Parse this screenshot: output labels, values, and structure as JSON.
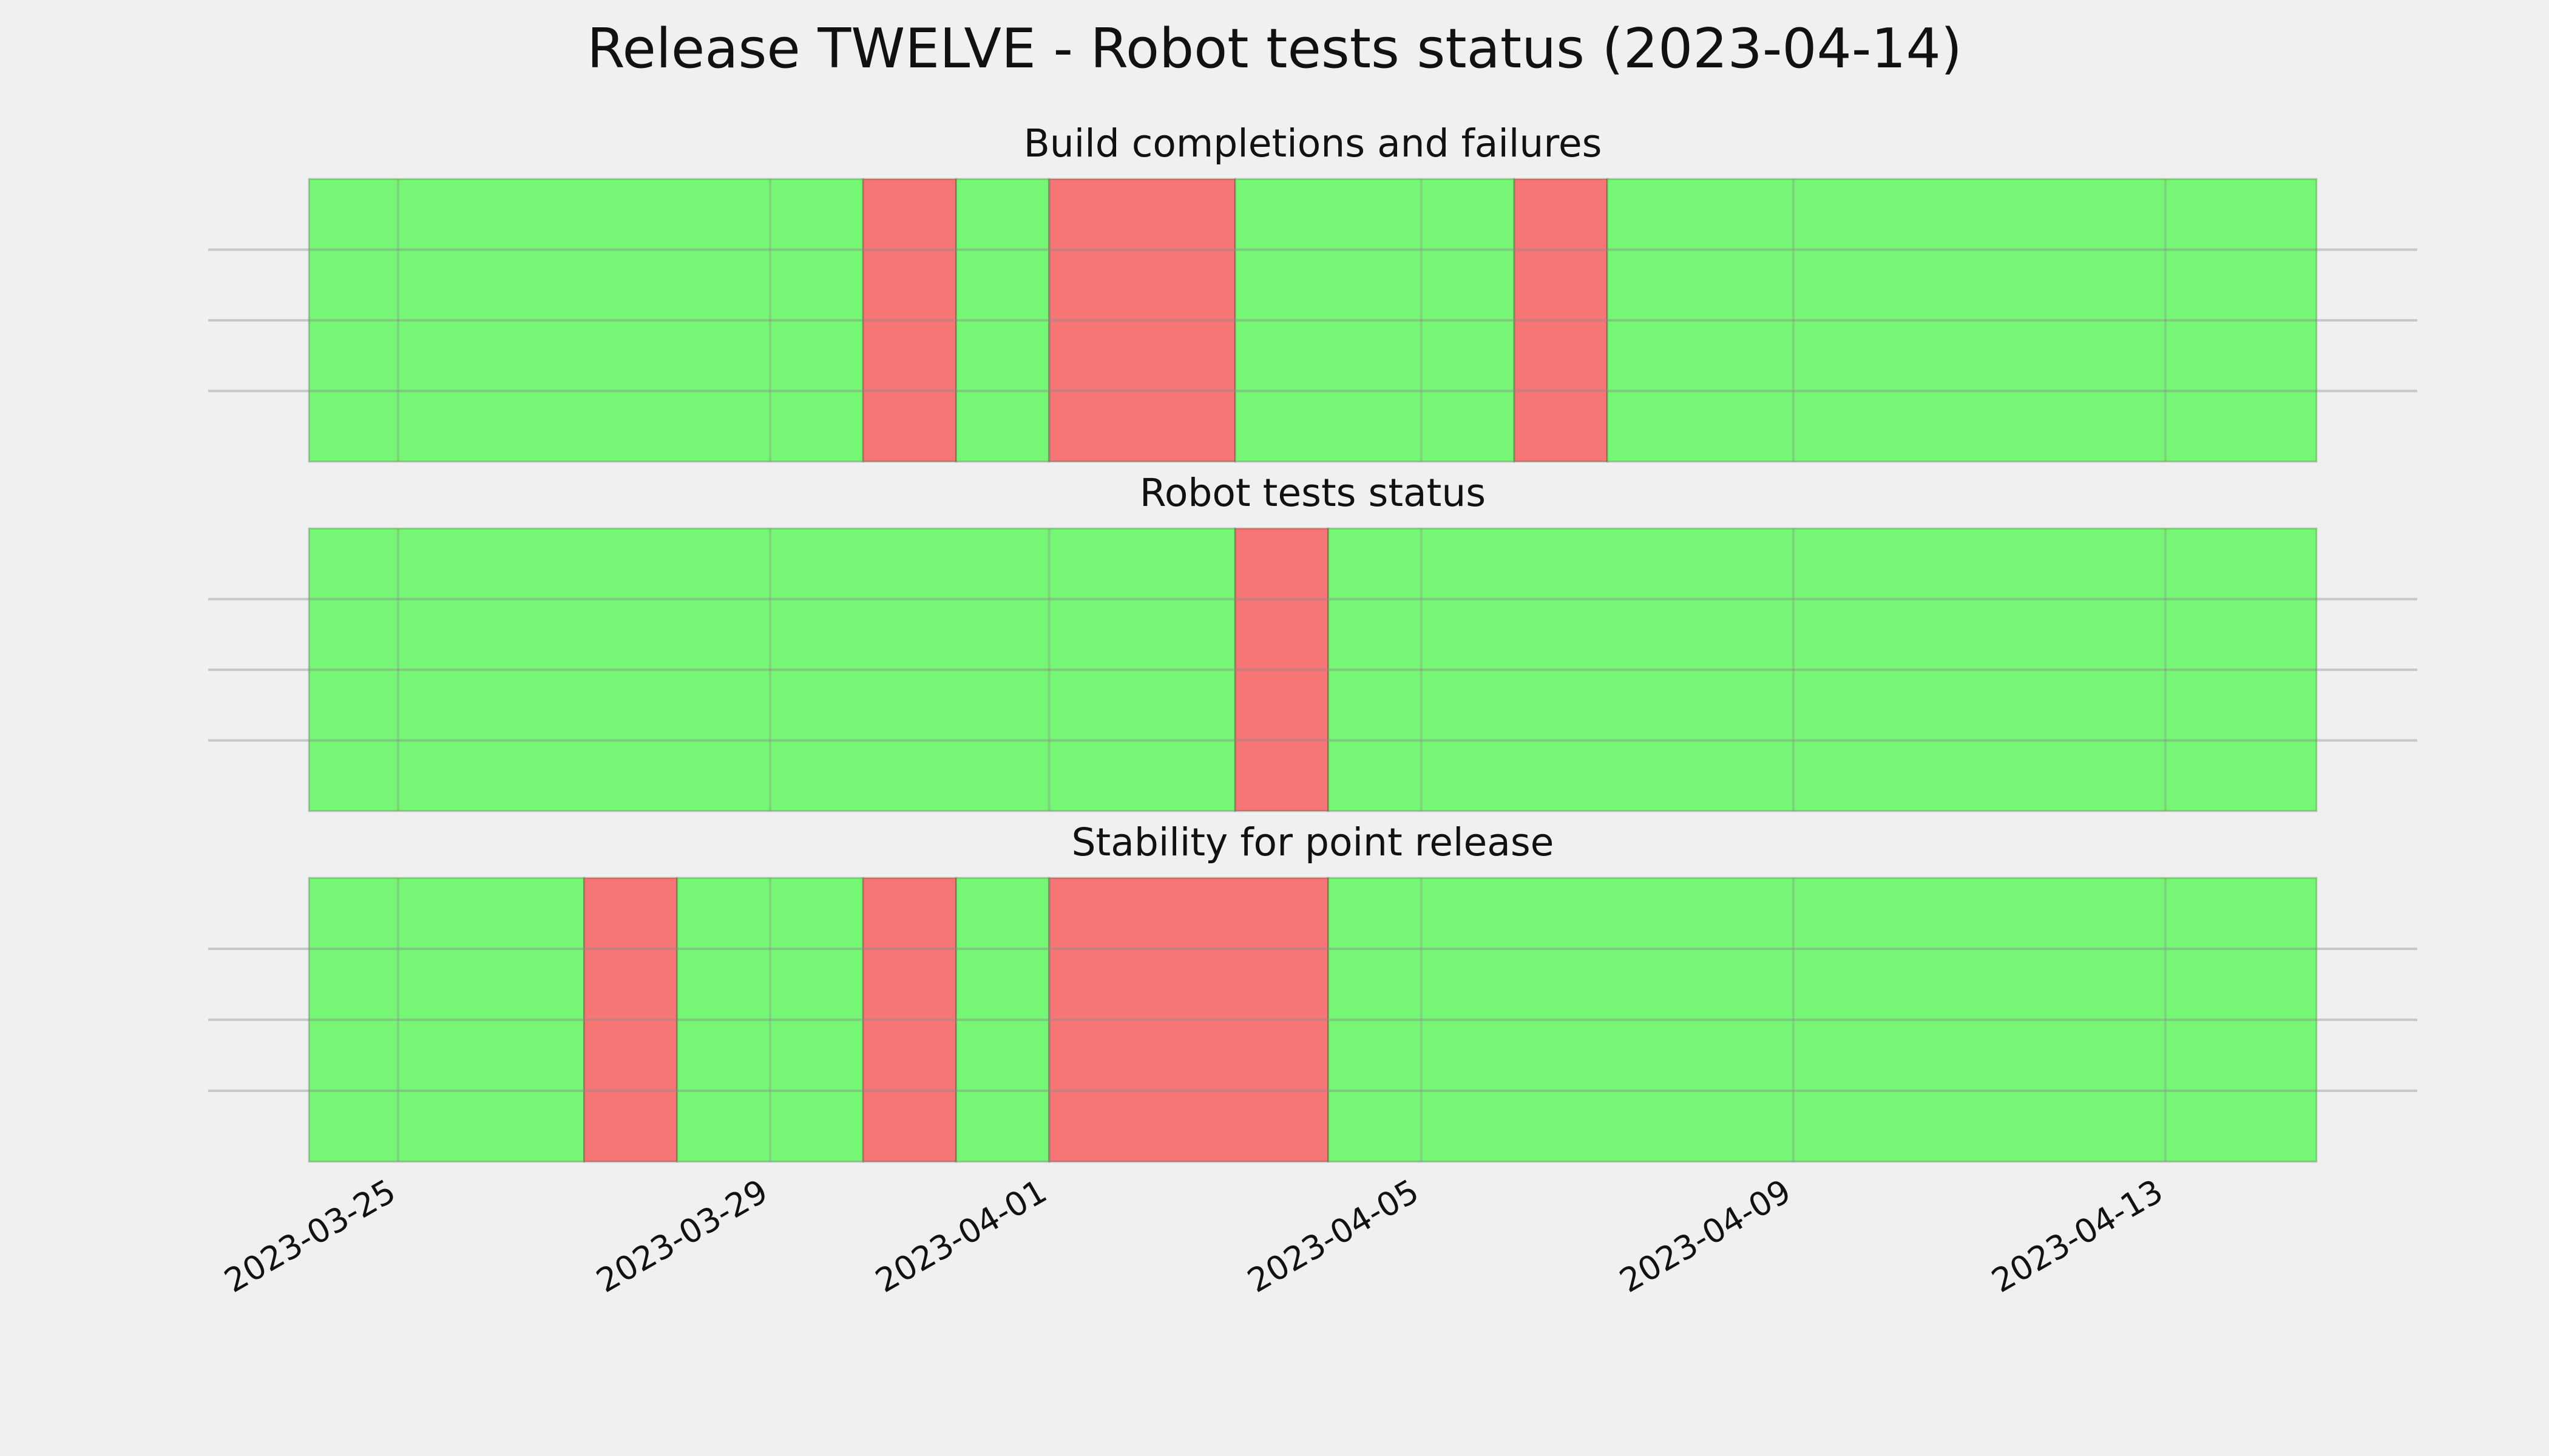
{
  "chart_data": [
    {
      "type": "timeline",
      "suptitle": "Release TWELVE - Robot tests status (2023-04-14)",
      "title": "Build completions and failures",
      "xlim": [
        "2023-03-22T23:00",
        "2023-04-15T17:00"
      ],
      "ylim": [
        0,
        1
      ],
      "yticks": [
        0.25,
        0.5,
        0.75
      ],
      "grid": true,
      "spans": [
        {
          "start": "2023-03-24T01:00",
          "end": "2023-03-30",
          "color": "#75f675"
        },
        {
          "start": "2023-03-30",
          "end": "2023-03-31",
          "color": "#f67676"
        },
        {
          "start": "2023-03-31",
          "end": "2023-04-01",
          "color": "#75f675"
        },
        {
          "start": "2023-04-01",
          "end": "2023-04-03",
          "color": "#f67676"
        },
        {
          "start": "2023-04-03",
          "end": "2023-04-06",
          "color": "#75f675"
        },
        {
          "start": "2023-04-06",
          "end": "2023-04-07",
          "color": "#f67676"
        },
        {
          "start": "2023-04-07",
          "end": "2023-04-14T15:00",
          "color": "#75f675"
        }
      ]
    },
    {
      "type": "timeline",
      "title": "Robot tests status",
      "xlim": [
        "2023-03-22T23:00",
        "2023-04-15T17:00"
      ],
      "ylim": [
        0,
        1
      ],
      "yticks": [
        0.25,
        0.5,
        0.75
      ],
      "grid": true,
      "spans": [
        {
          "start": "2023-03-24T01:00",
          "end": "2023-04-03",
          "color": "#75f675"
        },
        {
          "start": "2023-04-03",
          "end": "2023-04-04",
          "color": "#f67676"
        },
        {
          "start": "2023-04-04",
          "end": "2023-04-14T15:00",
          "color": "#75f675"
        }
      ]
    },
    {
      "type": "timeline",
      "title": "Stability for point release",
      "xlim": [
        "2023-03-22T23:00",
        "2023-04-15T17:00"
      ],
      "ylim": [
        0,
        1
      ],
      "yticks": [
        0.25,
        0.5,
        0.75
      ],
      "grid": true,
      "xticks": [
        "2023-03-25",
        "2023-03-29",
        "2023-04-01",
        "2023-04-05",
        "2023-04-09",
        "2023-04-13"
      ],
      "spans": [
        {
          "start": "2023-03-24T01:00",
          "end": "2023-03-27",
          "color": "#75f675"
        },
        {
          "start": "2023-03-27",
          "end": "2023-03-28",
          "color": "#f67676"
        },
        {
          "start": "2023-03-28",
          "end": "2023-03-30",
          "color": "#75f675"
        },
        {
          "start": "2023-03-30",
          "end": "2023-03-31",
          "color": "#f67676"
        },
        {
          "start": "2023-03-31",
          "end": "2023-04-01",
          "color": "#75f675"
        },
        {
          "start": "2023-04-01",
          "end": "2023-04-04",
          "color": "#f67676"
        },
        {
          "start": "2023-04-04",
          "end": "2023-04-14T15:00",
          "color": "#75f675"
        }
      ]
    }
  ]
}
